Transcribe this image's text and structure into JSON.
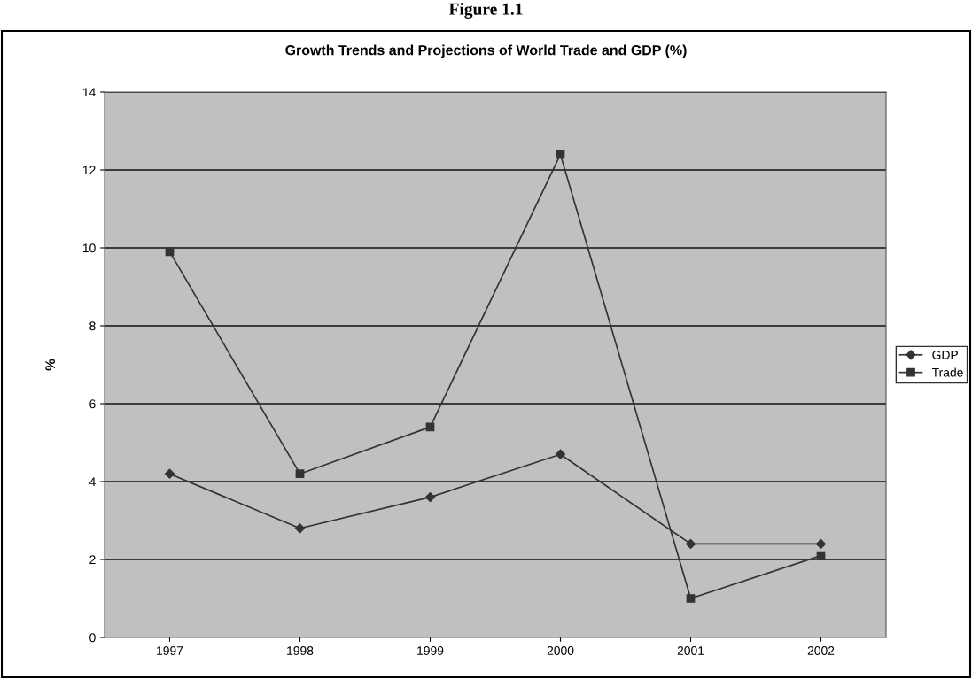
{
  "chart_data": {
    "type": "line",
    "title": "Growth Trends and Projections of World Trade and GDP (%)",
    "annotations": [
      "Figure 1.1"
    ],
    "ylabel": "%",
    "categories": [
      "1997",
      "1998",
      "1999",
      "2000",
      "2001",
      "2002"
    ],
    "series": [
      {
        "name": "GDP",
        "color": "#333333",
        "marker": "diamond",
        "values": [
          4.2,
          2.8,
          3.6,
          4.7,
          2.4,
          2.4
        ]
      },
      {
        "name": "Trade",
        "color": "#333333",
        "marker": "square",
        "values": [
          9.9,
          4.2,
          5.4,
          12.4,
          1.0,
          2.1
        ]
      }
    ],
    "ylim": [
      0,
      14
    ],
    "yticks": [
      0,
      2,
      4,
      6,
      8,
      10,
      12,
      14
    ],
    "grid": "y",
    "legend": "right",
    "line_style": "solid"
  }
}
